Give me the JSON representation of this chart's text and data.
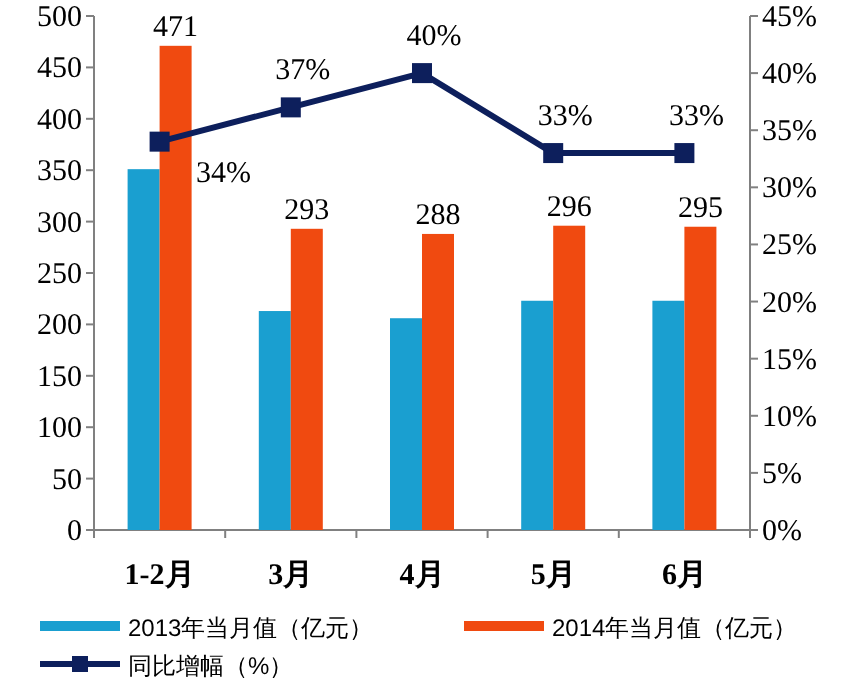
{
  "chart_data": {
    "type": "bar",
    "categories": [
      "1-2月",
      "3月",
      "4月",
      "5月",
      "6月"
    ],
    "series": [
      {
        "name": "2013年当月值（亿元）",
        "color": "#1a9fd0",
        "values": [
          351,
          213,
          206,
          223,
          223
        ]
      },
      {
        "name": "2014年当月值（亿元）",
        "color": "#f04a10",
        "values": [
          471,
          293,
          288,
          296,
          295
        ],
        "value_labels": [
          "471",
          "293",
          "288",
          "296",
          "295"
        ]
      },
      {
        "name": "同比增幅（%）",
        "type": "line",
        "axis": "y2",
        "color": "#0d1f5c",
        "values": [
          34,
          37,
          40,
          33,
          33
        ],
        "value_labels": [
          "34%",
          "37%",
          "40%",
          "33%",
          "33%"
        ]
      }
    ],
    "ylim": [
      0,
      500
    ],
    "yticks": [
      0,
      50,
      100,
      150,
      200,
      250,
      300,
      350,
      400,
      450,
      500
    ],
    "y2lim": [
      0,
      45
    ],
    "y2ticks": [
      {
        "value": 0,
        "label": "0%"
      },
      {
        "value": 5,
        "label": "5%"
      },
      {
        "value": 10,
        "label": "10%"
      },
      {
        "value": 15,
        "label": "15%"
      },
      {
        "value": 20,
        "label": "20%"
      },
      {
        "value": 25,
        "label": "25%"
      },
      {
        "value": 30,
        "label": "30%"
      },
      {
        "value": 35,
        "label": "35%"
      },
      {
        "value": 40,
        "label": "40%"
      },
      {
        "value": 45,
        "label": "45%"
      }
    ],
    "legend": "bottom",
    "marker": "square",
    "grid": false
  }
}
